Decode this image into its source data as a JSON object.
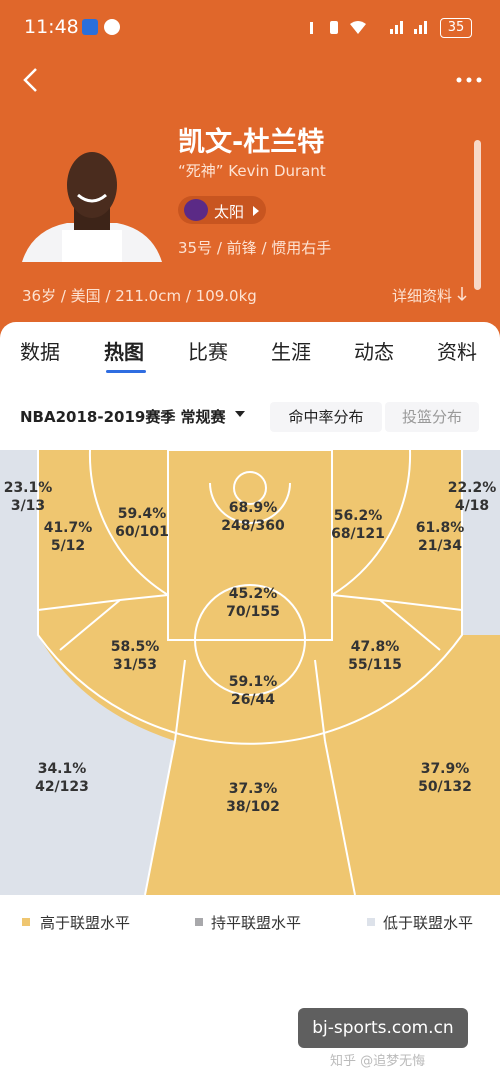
{
  "status_bar": {
    "time": "11:48",
    "battery": "35"
  },
  "player": {
    "name": "凯文-杜兰特",
    "nickname": "“死神” Kevin Durant",
    "team": "太阳",
    "info": "35号 / 前锋 / 惯用右手",
    "bio": "36岁 / 美国 / 211.0cm / 109.0kg",
    "details": "详细资料"
  },
  "tabs": [
    "数据",
    "热图",
    "比赛",
    "生涯",
    "动态",
    "资料"
  ],
  "filter": {
    "season": "NBA2018-2019赛季 常规赛",
    "buttons": [
      "命中率分布",
      "投篮分布"
    ]
  },
  "zones": [
    {
      "pct": "23.1%",
      "made": "3/13"
    },
    {
      "pct": "41.7%",
      "made": "5/12"
    },
    {
      "pct": "59.4%",
      "made": "60/101"
    },
    {
      "pct": "68.9%",
      "made": "248/360"
    },
    {
      "pct": "56.2%",
      "made": "68/121"
    },
    {
      "pct": "61.8%",
      "made": "21/34"
    },
    {
      "pct": "22.2%",
      "made": "4/18"
    },
    {
      "pct": "45.2%",
      "made": "70/155"
    },
    {
      "pct": "58.5%",
      "made": "31/53"
    },
    {
      "pct": "47.8%",
      "made": "55/115"
    },
    {
      "pct": "59.1%",
      "made": "26/44"
    },
    {
      "pct": "34.1%",
      "made": "42/123"
    },
    {
      "pct": "37.3%",
      "made": "38/102"
    },
    {
      "pct": "37.9%",
      "made": "50/132"
    }
  ],
  "legend": [
    "高于联盟水平",
    "持平联盟水平",
    "低于联盟水平"
  ],
  "watermark": {
    "site": "bj-sports.com.cn",
    "credit": "知乎 @追梦无悔"
  }
}
